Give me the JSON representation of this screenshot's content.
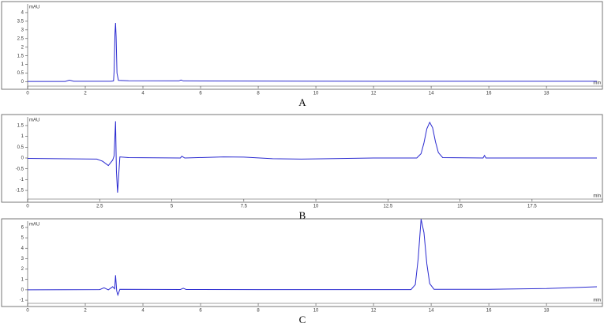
{
  "chart_data": [
    {
      "type": "line",
      "label": "A",
      "y_label": "mAU",
      "x_label": "min",
      "color": "#2a2ad0",
      "xlim": [
        0,
        19.75
      ],
      "ylim": [
        -0.25,
        4.5
      ],
      "xticks": [
        0,
        2,
        4,
        6,
        8,
        10,
        12,
        14,
        16,
        18
      ],
      "yticks": [
        0,
        0.5,
        1,
        1.5,
        2,
        2.5,
        3,
        3.5,
        4
      ],
      "x": [
        0,
        1.3,
        1.45,
        1.6,
        2.9,
        2.98,
        3.0,
        3.03,
        3.05,
        3.07,
        3.1,
        3.15,
        3.5,
        5.25,
        5.32,
        5.4,
        8,
        12,
        16,
        19.75
      ],
      "values": [
        0.02,
        0.02,
        0.09,
        0.03,
        0.03,
        0.05,
        0.6,
        2.8,
        3.4,
        2.6,
        0.5,
        0.08,
        0.06,
        0.05,
        0.1,
        0.05,
        0.04,
        0.03,
        0.03,
        0.03
      ]
    },
    {
      "type": "line",
      "label": "B",
      "y_label": "mAU",
      "x_label": "min",
      "color": "#2a2ad0",
      "xlim": [
        0,
        19.75
      ],
      "ylim": [
        -1.9,
        1.9
      ],
      "xticks": [
        0,
        2.5,
        5,
        7.5,
        10,
        12.5,
        15,
        17.5
      ],
      "yticks": [
        -1.5,
        -1,
        -0.5,
        0,
        0.5,
        1,
        1.5
      ],
      "x": [
        0,
        2.4,
        2.6,
        2.8,
        2.95,
        3.0,
        3.05,
        3.08,
        3.12,
        3.2,
        3.5,
        5.3,
        5.35,
        5.45,
        6.8,
        7.5,
        8.5,
        9.5,
        12,
        13.5,
        13.65,
        13.75,
        13.85,
        13.95,
        14.05,
        14.15,
        14.25,
        14.4,
        15.8,
        15.85,
        15.9,
        19.75
      ],
      "values": [
        -0.02,
        -0.05,
        -0.15,
        -0.35,
        -0.1,
        0.1,
        1.7,
        -0.6,
        -1.6,
        0.05,
        0.02,
        0.0,
        0.08,
        0.0,
        0.05,
        0.04,
        -0.03,
        -0.05,
        0.0,
        0.0,
        0.2,
        0.7,
        1.35,
        1.65,
        1.4,
        0.75,
        0.25,
        0.02,
        0.0,
        0.12,
        0.0,
        0.0
      ]
    },
    {
      "type": "line",
      "label": "C",
      "y_label": "mAU",
      "x_label": "min",
      "color": "#2a2ad0",
      "xlim": [
        0,
        19.75
      ],
      "ylim": [
        -1.3,
        6.6
      ],
      "xticks": [
        0,
        2,
        4,
        6,
        8,
        10,
        12,
        14,
        16,
        18
      ],
      "yticks": [
        -1,
        0,
        1,
        2,
        3,
        4,
        5,
        6
      ],
      "x": [
        0,
        2.5,
        2.65,
        2.8,
        2.95,
        3.02,
        3.05,
        3.09,
        3.13,
        3.2,
        5.3,
        5.4,
        5.5,
        8,
        12,
        13.3,
        13.45,
        13.55,
        13.65,
        13.75,
        13.85,
        13.95,
        14.1,
        16,
        18,
        19.75
      ],
      "values": [
        0.0,
        0.02,
        0.2,
        0.0,
        0.3,
        0.1,
        1.4,
        -0.1,
        -0.5,
        0.05,
        0.03,
        0.15,
        0.03,
        0.02,
        0.02,
        0.02,
        0.5,
        3.0,
        6.8,
        5.5,
        2.5,
        0.6,
        0.05,
        0.05,
        0.12,
        0.3
      ]
    }
  ]
}
